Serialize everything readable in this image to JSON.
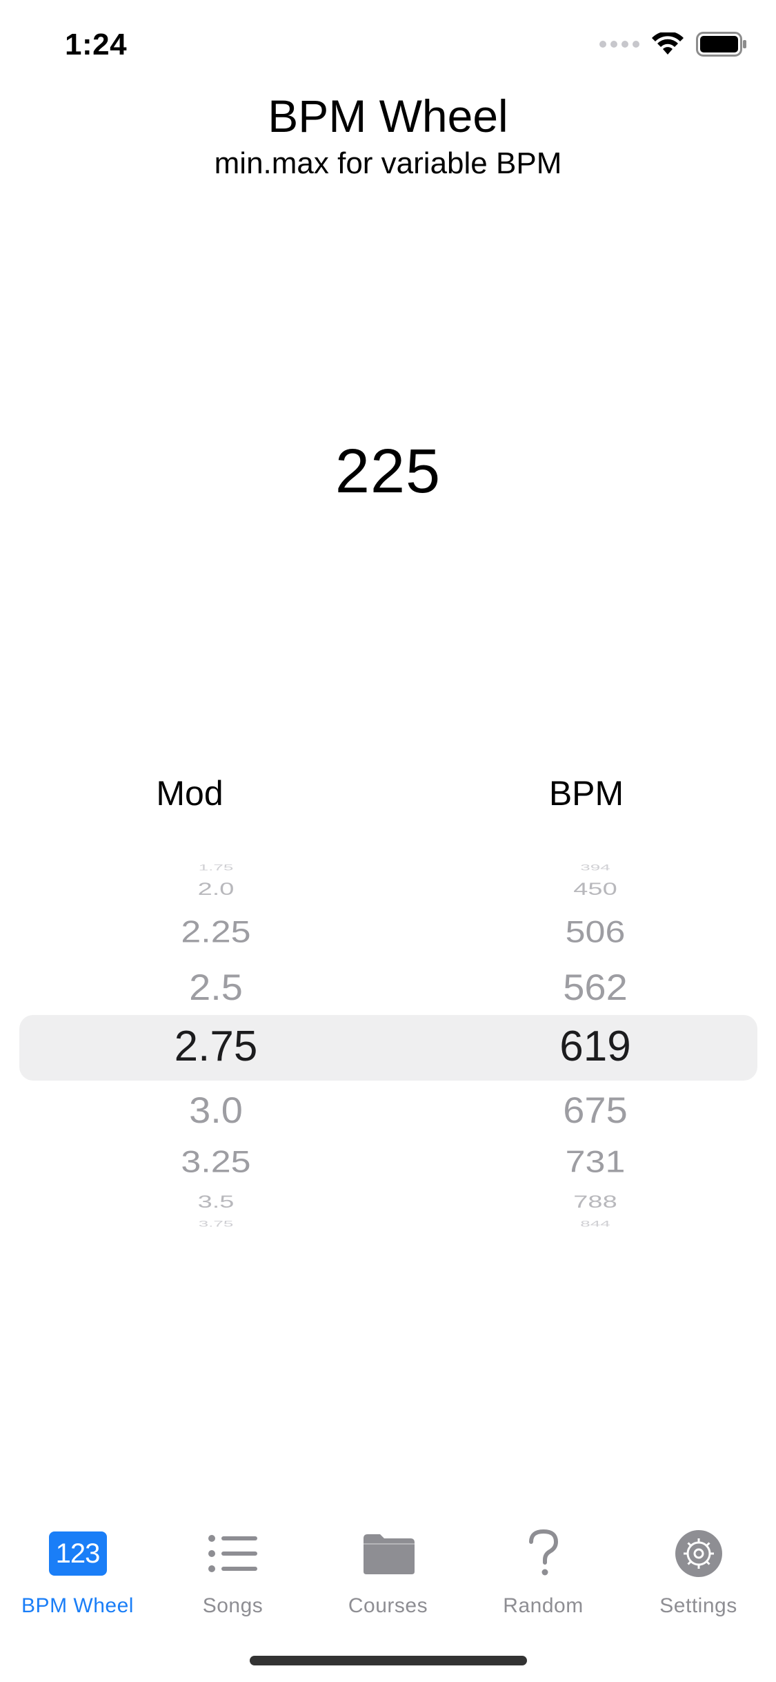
{
  "status": {
    "time": "1:24"
  },
  "header": {
    "title": "BPM Wheel",
    "subtitle": "min.max for variable BPM"
  },
  "result": {
    "value": "225"
  },
  "picker": {
    "mod_label": "Mod",
    "bpm_label": "BPM",
    "mod_values": [
      "1.75",
      "2.0",
      "2.25",
      "2.5",
      "2.75",
      "3.0",
      "3.25",
      "3.5",
      "3.75"
    ],
    "bpm_values": [
      "394",
      "450",
      "506",
      "562",
      "619",
      "675",
      "731",
      "788",
      "844"
    ],
    "selected_mod": "2.75",
    "selected_bpm": "619"
  },
  "tabs": [
    {
      "label": "BPM Wheel",
      "icon": "123-icon",
      "active": true,
      "icon_text": "123"
    },
    {
      "label": "Songs",
      "icon": "list-icon",
      "active": false
    },
    {
      "label": "Courses",
      "icon": "folder-icon",
      "active": false
    },
    {
      "label": "Random",
      "icon": "question-icon",
      "active": false
    },
    {
      "label": "Settings",
      "icon": "gear-icon",
      "active": false
    }
  ],
  "colors": {
    "accent": "#1a7ef7",
    "inactive": "#8e8e93",
    "highlight": "#efeff0"
  }
}
